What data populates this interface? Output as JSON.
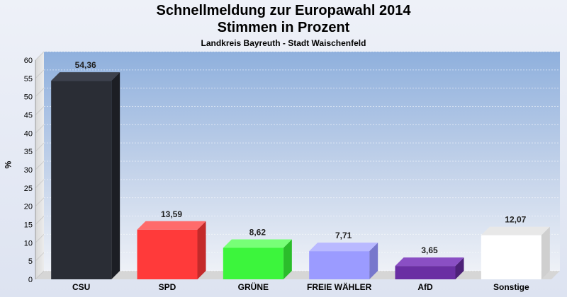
{
  "header": {
    "title_line1": "Schnellmeldung zur Europawahl 2014",
    "title_line2": "Stimmen in Prozent",
    "subtitle": "Landkreis Bayreuth - Stadt Waischenfeld"
  },
  "chart_data": {
    "type": "bar",
    "title": "Schnellmeldung zur Europawahl 2014 – Stimmen in Prozent",
    "subtitle": "Landkreis Bayreuth - Stadt Waischenfeld",
    "ylabel": "%",
    "xlabel": "",
    "ylim": [
      0,
      60
    ],
    "yticks": [
      0,
      5,
      10,
      15,
      20,
      25,
      30,
      35,
      40,
      45,
      50,
      55,
      60
    ],
    "grid": true,
    "categories": [
      "CSU",
      "SPD",
      "GRÜNE",
      "FREIE WÄHLER",
      "AfD",
      "Sonstige"
    ],
    "values": [
      54.36,
      13.59,
      8.62,
      7.71,
      3.65,
      12.07
    ],
    "value_labels": [
      "54,36",
      "13,59",
      "8,62",
      "7,71",
      "3,65",
      "12,07"
    ],
    "colors": [
      "#2a2d35",
      "#ff3a3a",
      "#3cf53c",
      "#9b9bff",
      "#6a2fa3",
      "#ffffff"
    ],
    "colors_side": [
      "#1c1e24",
      "#c42a2a",
      "#2bbd2b",
      "#7777cc",
      "#4d2178",
      "#cfcfcf"
    ],
    "colors_top": [
      "#3d414c",
      "#ff6b6b",
      "#77ff77",
      "#b9b9ff",
      "#8a4fc4",
      "#e8e8e8"
    ]
  }
}
